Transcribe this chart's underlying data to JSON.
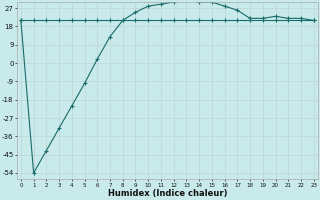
{
  "title": "",
  "xlabel": "Humidex (Indice chaleur)",
  "bg_color": "#c8eaea",
  "line_color": "#1a6b6b",
  "grid_color": "#c0d8d8",
  "x_values": [
    0,
    1,
    2,
    3,
    4,
    5,
    6,
    7,
    8,
    9,
    10,
    11,
    12,
    13,
    14,
    15,
    16,
    17,
    18,
    19,
    20,
    21,
    22,
    23
  ],
  "y_line1": [
    21,
    -54,
    -43,
    -32,
    -21,
    -10,
    2,
    13,
    21,
    25,
    28,
    29,
    30,
    31,
    30,
    30,
    28,
    26,
    22,
    22,
    23,
    22,
    22,
    21
  ],
  "y_line2": [
    21,
    21,
    21,
    21,
    21,
    21,
    21,
    21,
    21,
    21,
    21,
    21,
    21,
    21,
    21,
    21,
    21,
    21,
    21,
    21,
    21,
    21,
    21,
    21
  ],
  "yticks": [
    27,
    18,
    9,
    0,
    -9,
    -18,
    -27,
    -36,
    -45,
    -54
  ],
  "xticks": [
    0,
    1,
    2,
    3,
    4,
    5,
    6,
    7,
    8,
    9,
    10,
    11,
    12,
    13,
    14,
    15,
    16,
    17,
    18,
    19,
    20,
    21,
    22,
    23
  ],
  "ylim": [
    -57,
    30
  ],
  "xlim": [
    -0.3,
    23.3
  ]
}
